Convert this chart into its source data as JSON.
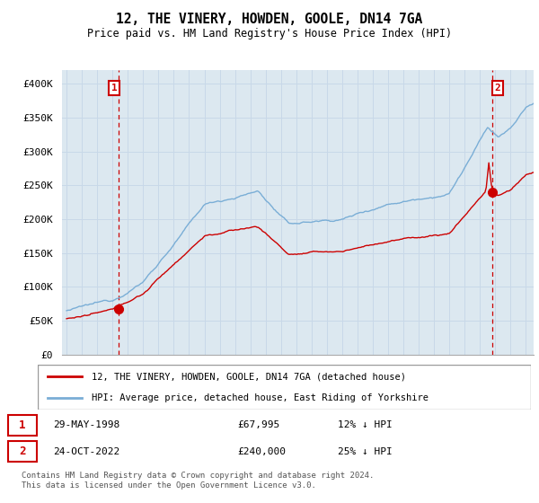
{
  "title": "12, THE VINERY, HOWDEN, GOOLE, DN14 7GA",
  "subtitle": "Price paid vs. HM Land Registry's House Price Index (HPI)",
  "ylabel_ticks": [
    "£0",
    "£50K",
    "£100K",
    "£150K",
    "£200K",
    "£250K",
    "£300K",
    "£350K",
    "£400K"
  ],
  "ytick_values": [
    0,
    50000,
    100000,
    150000,
    200000,
    250000,
    300000,
    350000,
    400000
  ],
  "ylim": [
    0,
    420000
  ],
  "xlim_start": 1994.7,
  "xlim_end": 2025.5,
  "sale1_x": 1998.41,
  "sale1_y": 67995,
  "sale2_x": 2022.81,
  "sale2_y": 240000,
  "legend_line1": "12, THE VINERY, HOWDEN, GOOLE, DN14 7GA (detached house)",
  "legend_line2": "HPI: Average price, detached house, East Riding of Yorkshire",
  "footer": "Contains HM Land Registry data © Crown copyright and database right 2024.\nThis data is licensed under the Open Government Licence v3.0.",
  "color_red": "#cc0000",
  "color_blue": "#7aaed6",
  "color_grid": "#c8d8e8",
  "bg_color": "#dce8f0",
  "color_vline": "#cc0000"
}
